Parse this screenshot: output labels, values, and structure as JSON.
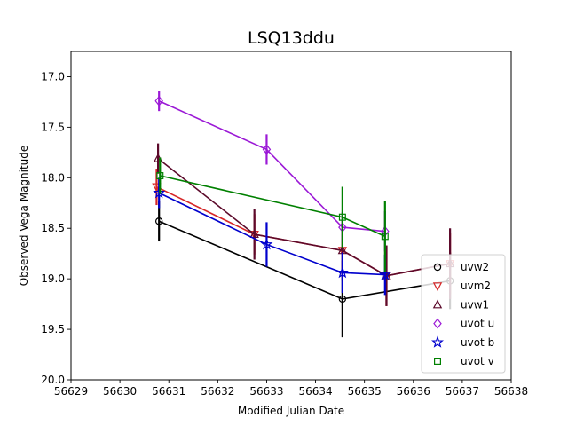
{
  "chart_data": {
    "type": "scatter",
    "title": "LSQ13ddu",
    "xlabel": "Modified Julian Date",
    "ylabel": "Observed Vega Magnitude",
    "xlim": [
      56629,
      56638
    ],
    "ylim": [
      20.0,
      16.75
    ],
    "y_inverted": true,
    "xticks": [
      "56629",
      "56630",
      "56631",
      "56632",
      "56633",
      "56634",
      "56635",
      "56636",
      "56637",
      "56638"
    ],
    "yticks": [
      "17.0",
      "17.5",
      "18.0",
      "18.5",
      "19.0",
      "19.5",
      "20.0"
    ],
    "legend_position": "lower-right",
    "series": [
      {
        "name": "uvw2",
        "color": "#000000",
        "marker": "circle",
        "x": [
          56630.8,
          56634.55,
          56636.75
        ],
        "y": [
          18.43,
          19.2,
          19.02
        ],
        "err": [
          0.2,
          0.38,
          0.28
        ]
      },
      {
        "name": "uvm2",
        "color": "#d62728",
        "marker": "triangle-down",
        "x": [
          56630.75,
          56632.75,
          56634.55,
          56635.45,
          56636.75
        ],
        "y": [
          18.09,
          18.56,
          18.72,
          18.97,
          18.85
        ],
        "err": [
          0.18,
          0.2,
          0.25,
          0.3,
          0.3
        ]
      },
      {
        "name": "uvw1",
        "color": "#5c0a2b",
        "marker": "triangle-up",
        "x": [
          56630.78,
          56632.75,
          56634.55,
          56635.45,
          56636.75
        ],
        "y": [
          17.81,
          18.56,
          18.72,
          18.97,
          18.85
        ],
        "err": [
          0.15,
          0.25,
          0.3,
          0.3,
          0.35
        ]
      },
      {
        "name": "uvot u",
        "color": "#9b19d6",
        "marker": "diamond",
        "x": [
          56630.8,
          56633.0,
          56634.55,
          56635.42
        ],
        "y": [
          17.24,
          17.72,
          18.49,
          18.53
        ],
        "err": [
          0.1,
          0.15,
          0.15,
          0.2
        ]
      },
      {
        "name": "uvot b",
        "color": "#0000cd",
        "marker": "star",
        "x": [
          56630.8,
          56633.0,
          56634.55,
          56635.42
        ],
        "y": [
          18.15,
          18.66,
          18.94,
          18.96
        ],
        "err": [
          0.15,
          0.22,
          0.2,
          0.2
        ]
      },
      {
        "name": "uvot v",
        "color": "#008000",
        "marker": "square",
        "x": [
          56630.82,
          56634.55,
          56635.42
        ],
        "y": [
          17.98,
          18.39,
          18.58
        ],
        "err": [
          0.18,
          0.3,
          0.35
        ]
      }
    ]
  }
}
